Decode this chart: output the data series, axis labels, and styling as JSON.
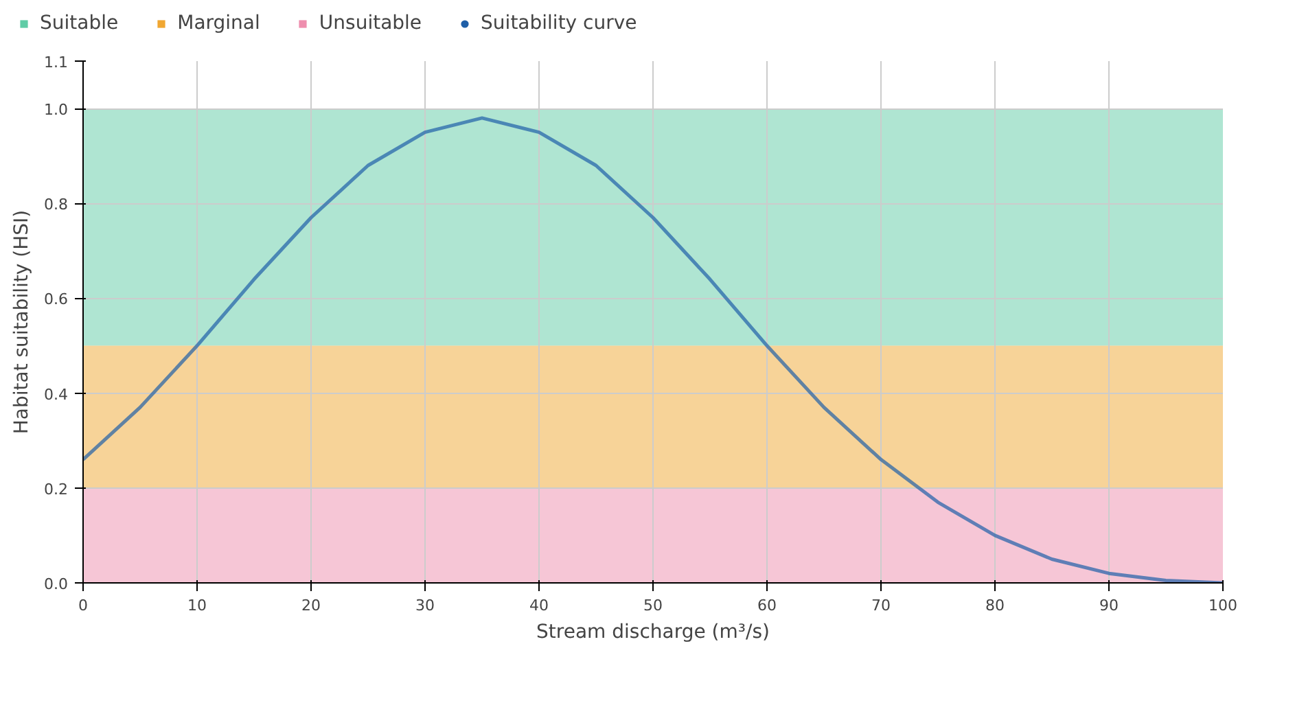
{
  "chart_data": {
    "type": "line",
    "xlabel": "Stream discharge (m³/s)",
    "ylabel": "Habitat suitability (HSI)",
    "x": [
      0,
      5,
      10,
      15,
      20,
      25,
      30,
      35,
      40,
      45,
      50,
      55,
      60,
      65,
      70,
      75,
      80,
      85,
      90,
      95,
      100
    ],
    "series": [
      {
        "name": "Suitability curve",
        "color": "#1f5fa8",
        "values": [
          0.26,
          0.37,
          0.5,
          0.64,
          0.77,
          0.88,
          0.95,
          0.98,
          0.95,
          0.88,
          0.77,
          0.64,
          0.5,
          0.37,
          0.26,
          0.17,
          0.1,
          0.05,
          0.02,
          0.005,
          0.0
        ]
      }
    ],
    "bands": [
      {
        "axis": "y",
        "from": 0.5,
        "to": 1.0,
        "label": "Suitable",
        "color": "#5fcca6"
      },
      {
        "axis": "y",
        "from": 0.2,
        "to": 0.5,
        "label": "Marginal",
        "color": "#f0a732"
      },
      {
        "axis": "y",
        "from": 0.0,
        "to": 0.2,
        "label": "Unsuitable",
        "color": "#ee8eae"
      }
    ],
    "xlim": [
      0,
      100
    ],
    "xticks": [
      0,
      10,
      20,
      30,
      40,
      50,
      60,
      70,
      80,
      90,
      100
    ],
    "ylim": [
      0,
      1.1
    ],
    "yticks": [
      {
        "value": 0,
        "label": "0.0"
      },
      0.2,
      0.4,
      0.6,
      0.8,
      {
        "value": 1,
        "label": "1.0"
      },
      1.1
    ],
    "grid": true,
    "legend": "top left"
  }
}
